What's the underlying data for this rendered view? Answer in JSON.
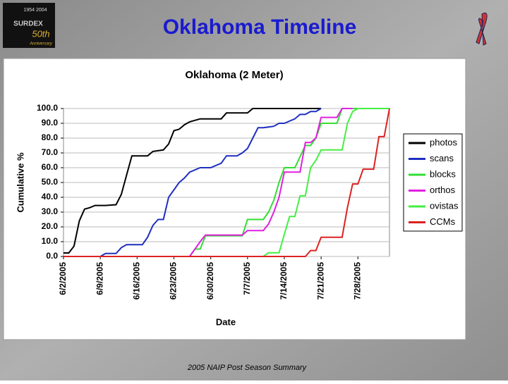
{
  "slide_title": "Oklahoma Timeline",
  "footer": "2005 NAIP Post Season Summary",
  "logo": {
    "years": "1954 2004",
    "brand": "SURDEX",
    "badge": "50th",
    "caption": "Anniversary"
  },
  "chart_data": {
    "type": "line",
    "title": "Oklahoma (2 Meter)",
    "x_label": "Date",
    "y_label": "Cumulative %",
    "xlim": [
      "2005-06-02",
      "2005-08-03"
    ],
    "xticks": [
      {
        "value": "2005-06-02",
        "label": "6/2/2005"
      },
      {
        "value": "2005-06-09",
        "label": "6/9/2005"
      },
      {
        "value": "2005-06-16",
        "label": "6/16/2005"
      },
      {
        "value": "2005-06-23",
        "label": "6/23/2005"
      },
      {
        "value": "2005-06-30",
        "label": "6/30/2005"
      },
      {
        "value": "2005-07-07",
        "label": "7/7/2005"
      },
      {
        "value": "2005-07-14",
        "label": "7/14/2005"
      },
      {
        "value": "2005-07-21",
        "label": "7/21/2005"
      },
      {
        "value": "2005-07-28",
        "label": "7/28/2005"
      }
    ],
    "ylim": [
      0,
      100
    ],
    "yticks": [
      {
        "value": 0,
        "label": "0.0"
      },
      {
        "value": 10,
        "label": "10.0"
      },
      {
        "value": 20,
        "label": "20.0"
      },
      {
        "value": 30,
        "label": "30.0"
      },
      {
        "value": 40,
        "label": "40.0"
      },
      {
        "value": 50,
        "label": "50.0"
      },
      {
        "value": 60,
        "label": "60.0"
      },
      {
        "value": 70,
        "label": "70.0"
      },
      {
        "value": 80,
        "label": "80.0"
      },
      {
        "value": 90,
        "label": "90.0"
      },
      {
        "value": 100,
        "label": "100.0"
      }
    ],
    "grid": true,
    "legend": "right",
    "series": [
      {
        "name": "photos",
        "color": "#000000",
        "x": [
          "2005-06-02",
          "2005-06-03",
          "2005-06-04",
          "2005-06-05",
          "2005-06-06",
          "2005-06-07",
          "2005-06-08",
          "2005-06-10",
          "2005-06-12",
          "2005-06-13",
          "2005-06-14",
          "2005-06-15",
          "2005-06-18",
          "2005-06-19",
          "2005-06-21",
          "2005-06-22",
          "2005-06-23",
          "2005-06-24",
          "2005-06-25",
          "2005-06-26",
          "2005-06-28",
          "2005-07-02",
          "2005-07-03",
          "2005-07-07",
          "2005-07-08",
          "2005-07-21"
        ],
        "values": [
          2.4,
          2.4,
          7,
          24,
          32,
          33,
          34.5,
          34.5,
          35,
          42,
          55,
          68,
          68,
          71,
          72,
          76,
          85,
          86,
          89,
          91,
          93,
          93,
          97,
          97,
          100,
          100
        ]
      },
      {
        "name": "scans",
        "color": "#1f2fbf",
        "x": [
          "2005-06-02",
          "2005-06-09",
          "2005-06-10",
          "2005-06-12",
          "2005-06-13",
          "2005-06-14",
          "2005-06-17",
          "2005-06-18",
          "2005-06-19",
          "2005-06-20",
          "2005-06-21",
          "2005-06-22",
          "2005-06-23",
          "2005-06-24",
          "2005-06-25",
          "2005-06-26",
          "2005-06-28",
          "2005-06-30",
          "2005-07-02",
          "2005-07-03",
          "2005-07-05",
          "2005-07-06",
          "2005-07-07",
          "2005-07-08",
          "2005-07-09",
          "2005-07-10",
          "2005-07-12",
          "2005-07-13",
          "2005-07-14",
          "2005-07-16",
          "2005-07-17",
          "2005-07-18",
          "2005-07-19",
          "2005-07-20",
          "2005-07-21"
        ],
        "values": [
          0,
          0,
          2,
          2,
          6,
          8,
          8,
          13,
          21,
          25,
          25,
          40,
          45,
          50,
          53,
          57,
          60,
          60,
          63,
          68,
          68,
          70,
          73,
          80,
          87,
          87,
          88,
          90,
          90,
          93,
          96,
          96,
          98,
          98,
          100
        ]
      },
      {
        "name": "blocks",
        "color": "#33dd33",
        "x": [
          "2005-06-02",
          "2005-06-26",
          "2005-06-27",
          "2005-06-28",
          "2005-06-29",
          "2005-07-06",
          "2005-07-07",
          "2005-07-10",
          "2005-07-11",
          "2005-07-12",
          "2005-07-13",
          "2005-07-14",
          "2005-07-16",
          "2005-07-18",
          "2005-07-19",
          "2005-07-20",
          "2005-07-21",
          "2005-07-24",
          "2005-07-25",
          "2005-08-03"
        ],
        "values": [
          0,
          0,
          5,
          5,
          14,
          14,
          25,
          25,
          30,
          38,
          50,
          60,
          60,
          75,
          75,
          80,
          90,
          90,
          100,
          100
        ]
      },
      {
        "name": "orthos",
        "color": "#e020e0",
        "x": [
          "2005-06-02",
          "2005-06-26",
          "2005-06-27",
          "2005-06-28",
          "2005-06-29",
          "2005-07-06",
          "2005-07-07",
          "2005-07-10",
          "2005-07-11",
          "2005-07-12",
          "2005-07-13",
          "2005-07-14",
          "2005-07-17",
          "2005-07-18",
          "2005-07-19",
          "2005-07-20",
          "2005-07-21",
          "2005-07-24",
          "2005-07-25",
          "2005-07-27"
        ],
        "values": [
          0,
          0,
          5,
          10,
          14.5,
          14.5,
          17.5,
          17.5,
          22,
          30,
          40,
          57,
          57,
          77,
          77,
          80,
          94,
          94,
          100,
          100
        ]
      },
      {
        "name": "ovistas",
        "color": "#44ee44",
        "x": [
          "2005-06-02",
          "2005-07-10",
          "2005-07-11",
          "2005-07-13",
          "2005-07-14",
          "2005-07-15",
          "2005-07-16",
          "2005-07-17",
          "2005-07-18",
          "2005-07-19",
          "2005-07-20",
          "2005-07-21",
          "2005-07-25",
          "2005-07-26",
          "2005-07-27",
          "2005-07-28",
          "2005-08-03"
        ],
        "values": [
          0,
          0,
          2.5,
          2.5,
          15,
          27,
          27,
          41,
          41,
          60,
          65,
          72,
          72,
          90,
          98,
          100,
          100
        ]
      },
      {
        "name": "CCMs",
        "color": "#dd2222",
        "x": [
          "2005-06-02",
          "2005-07-18",
          "2005-07-19",
          "2005-07-20",
          "2005-07-21",
          "2005-07-25",
          "2005-07-26",
          "2005-07-27",
          "2005-07-28",
          "2005-07-29",
          "2005-07-31",
          "2005-08-01",
          "2005-08-02",
          "2005-08-03"
        ],
        "values": [
          0,
          0,
          4,
          4,
          13,
          13,
          33,
          49,
          49,
          59,
          59,
          81,
          81,
          100
        ]
      }
    ]
  }
}
